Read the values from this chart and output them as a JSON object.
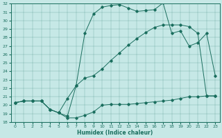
{
  "xlabel": "Humidex (Indice chaleur)",
  "xlim": [
    -0.5,
    23.5
  ],
  "ylim": [
    18,
    32
  ],
  "xticks": [
    0,
    1,
    2,
    3,
    4,
    5,
    6,
    7,
    8,
    9,
    10,
    11,
    12,
    13,
    14,
    15,
    16,
    17,
    18,
    19,
    20,
    21,
    22,
    23
  ],
  "yticks": [
    18,
    19,
    20,
    21,
    22,
    23,
    24,
    25,
    26,
    27,
    28,
    29,
    30,
    31,
    32
  ],
  "bg_color": "#c6e8e6",
  "line_color": "#1a6e5e",
  "line1_x": [
    0,
    1,
    2,
    3,
    4,
    5,
    6,
    7,
    8,
    9,
    10,
    11,
    12,
    13,
    14,
    15,
    16,
    17,
    18,
    19,
    20,
    21,
    22,
    23
  ],
  "line1_y": [
    20.3,
    20.5,
    20.5,
    20.5,
    19.5,
    19.1,
    18.5,
    18.5,
    18.8,
    19.2,
    20.0,
    20.1,
    20.1,
    20.1,
    20.2,
    20.3,
    20.4,
    20.5,
    20.6,
    20.8,
    21.0,
    21.0,
    21.1,
    21.1
  ],
  "line2_x": [
    0,
    1,
    2,
    3,
    4,
    5,
    6,
    7,
    8,
    9,
    10,
    11,
    12,
    13,
    14,
    15,
    16,
    17,
    18,
    19,
    20,
    21,
    22,
    23
  ],
  "line2_y": [
    20.3,
    20.5,
    20.5,
    20.5,
    19.5,
    19.1,
    18.7,
    22.3,
    28.5,
    30.8,
    31.6,
    31.8,
    31.9,
    31.5,
    31.1,
    31.2,
    31.3,
    32.1,
    28.5,
    28.8,
    27.0,
    27.4,
    28.5,
    23.5
  ],
  "line3_x": [
    0,
    1,
    2,
    3,
    4,
    5,
    6,
    7,
    8,
    9,
    10,
    11,
    12,
    13,
    14,
    15,
    16,
    17,
    18,
    19,
    20,
    21,
    22,
    23
  ],
  "line3_y": [
    20.3,
    20.5,
    20.5,
    20.5,
    19.5,
    19.1,
    20.8,
    22.3,
    23.2,
    23.5,
    24.3,
    25.3,
    26.2,
    27.1,
    27.9,
    28.6,
    29.2,
    29.5,
    29.5,
    29.5,
    29.3,
    28.5,
    21.1,
    21.1
  ]
}
